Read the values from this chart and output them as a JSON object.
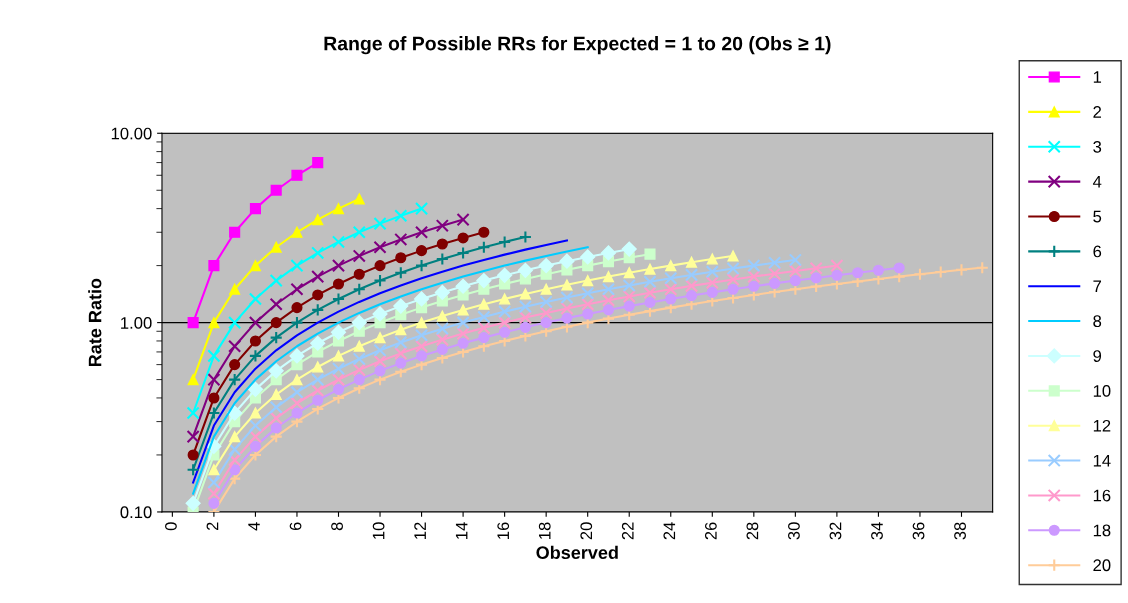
{
  "chart_data": {
    "type": "line",
    "title": "Range of Possible RRs for Expected = 1 to 20 (Obs ≥ 1)",
    "xlabel": "Observed",
    "ylabel": "Rate Ratio",
    "xlim": [
      -0.5,
      39.5
    ],
    "xticks": [
      0,
      2,
      4,
      6,
      8,
      10,
      12,
      14,
      16,
      18,
      20,
      22,
      24,
      26,
      28,
      30,
      32,
      34,
      36,
      38
    ],
    "log": "y",
    "ylim": [
      0.1,
      10
    ],
    "yticks": [
      {
        "value": 0.1,
        "label": "0.10"
      },
      {
        "value": 1,
        "label": "1.00"
      },
      {
        "value": 10,
        "label": "10.00"
      }
    ],
    "grid": "y",
    "legend": "right",
    "series": [
      {
        "name": "1",
        "color": "#ff00ff",
        "marker": "square",
        "x": [
          1,
          2,
          3,
          4,
          5,
          6,
          7
        ],
        "values": [
          1,
          2,
          3,
          4,
          5,
          6,
          7
        ]
      },
      {
        "name": "2",
        "color": "#ffff00",
        "marker": "triangle",
        "x": [
          1,
          2,
          3,
          4,
          5,
          6,
          7,
          8,
          9
        ],
        "values": [
          0.5,
          1,
          1.5,
          2,
          2.5,
          3,
          3.5,
          4,
          4.5
        ]
      },
      {
        "name": "3",
        "color": "#00ffff",
        "marker": "cross",
        "x": [
          1,
          2,
          3,
          4,
          5,
          6,
          7,
          8,
          9,
          10,
          11,
          12
        ],
        "values": [
          0.333,
          0.667,
          1,
          1.333,
          1.667,
          2,
          2.333,
          2.667,
          3,
          3.333,
          3.667,
          4
        ]
      },
      {
        "name": "4",
        "color": "#800080",
        "marker": "cross",
        "x": [
          1,
          2,
          3,
          4,
          5,
          6,
          7,
          8,
          9,
          10,
          11,
          12,
          13,
          14
        ],
        "values": [
          0.25,
          0.5,
          0.75,
          1,
          1.25,
          1.5,
          1.75,
          2,
          2.25,
          2.5,
          2.75,
          3,
          3.25,
          3.5
        ]
      },
      {
        "name": "5",
        "color": "#800000",
        "marker": "circle",
        "x": [
          1,
          2,
          3,
          4,
          5,
          6,
          7,
          8,
          9,
          10,
          11,
          12,
          13,
          14,
          15
        ],
        "values": [
          0.2,
          0.4,
          0.6,
          0.8,
          1,
          1.2,
          1.4,
          1.6,
          1.8,
          2,
          2.2,
          2.4,
          2.6,
          2.8,
          3
        ]
      },
      {
        "name": "6",
        "color": "#008080",
        "marker": "plus",
        "x": [
          1,
          2,
          3,
          4,
          5,
          6,
          7,
          8,
          9,
          10,
          11,
          12,
          13,
          14,
          15,
          16,
          17
        ],
        "values": [
          0.167,
          0.333,
          0.5,
          0.667,
          0.833,
          1,
          1.167,
          1.333,
          1.5,
          1.667,
          1.833,
          2,
          2.167,
          2.333,
          2.5,
          2.667,
          2.833
        ]
      },
      {
        "name": "7",
        "color": "#0000ff",
        "marker": "none",
        "x": [
          1,
          2,
          3,
          4,
          5,
          6,
          7,
          8,
          9,
          10,
          11,
          12,
          13,
          14,
          15,
          16,
          17,
          18,
          19
        ],
        "values": [
          0.143,
          0.286,
          0.429,
          0.571,
          0.714,
          0.857,
          1,
          1.143,
          1.286,
          1.429,
          1.571,
          1.714,
          1.857,
          2,
          2.143,
          2.286,
          2.429,
          2.571,
          2.714
        ]
      },
      {
        "name": "8",
        "color": "#00ccff",
        "marker": "none",
        "x": [
          1,
          2,
          3,
          4,
          5,
          6,
          7,
          8,
          9,
          10,
          11,
          12,
          13,
          14,
          15,
          16,
          17,
          18,
          19,
          20
        ],
        "values": [
          0.125,
          0.25,
          0.375,
          0.5,
          0.625,
          0.75,
          0.875,
          1,
          1.125,
          1.25,
          1.375,
          1.5,
          1.625,
          1.75,
          1.875,
          2,
          2.125,
          2.25,
          2.375,
          2.5
        ]
      },
      {
        "name": "9",
        "color": "#ccffff",
        "marker": "diamond",
        "x": [
          1,
          2,
          3,
          4,
          5,
          6,
          7,
          8,
          9,
          10,
          11,
          12,
          13,
          14,
          15,
          16,
          17,
          18,
          19,
          20,
          21,
          22
        ],
        "values": [
          0.111,
          0.222,
          0.333,
          0.444,
          0.556,
          0.667,
          0.778,
          0.889,
          1,
          1.111,
          1.222,
          1.333,
          1.444,
          1.556,
          1.667,
          1.778,
          1.889,
          2,
          2.111,
          2.222,
          2.333,
          2.444
        ]
      },
      {
        "name": "10",
        "color": "#ccffcc",
        "marker": "square",
        "x": [
          1,
          2,
          3,
          4,
          5,
          6,
          7,
          8,
          9,
          10,
          11,
          12,
          13,
          14,
          15,
          16,
          17,
          18,
          19,
          20,
          21,
          22,
          23
        ],
        "values": [
          0.1,
          0.2,
          0.3,
          0.4,
          0.5,
          0.6,
          0.7,
          0.8,
          0.9,
          1,
          1.1,
          1.2,
          1.3,
          1.4,
          1.5,
          1.6,
          1.7,
          1.8,
          1.9,
          2,
          2.1,
          2.2,
          2.3
        ]
      },
      {
        "name": "12",
        "color": "#ffff99",
        "marker": "triangle",
        "x": [
          2,
          3,
          4,
          5,
          6,
          7,
          8,
          9,
          10,
          11,
          12,
          13,
          14,
          15,
          16,
          17,
          18,
          19,
          20,
          21,
          22,
          23,
          24,
          25,
          26,
          27
        ],
        "values": [
          0.167,
          0.25,
          0.333,
          0.417,
          0.5,
          0.583,
          0.667,
          0.75,
          0.833,
          0.917,
          1,
          1.083,
          1.167,
          1.25,
          1.333,
          1.417,
          1.5,
          1.583,
          1.667,
          1.75,
          1.833,
          1.917,
          2,
          2.083,
          2.167,
          2.25
        ]
      },
      {
        "name": "14",
        "color": "#99ccff",
        "marker": "cross",
        "x": [
          2,
          3,
          4,
          5,
          6,
          7,
          8,
          9,
          10,
          11,
          12,
          13,
          14,
          15,
          16,
          17,
          18,
          19,
          20,
          21,
          22,
          23,
          24,
          25,
          26,
          27,
          28,
          29,
          30
        ],
        "values": [
          0.143,
          0.214,
          0.286,
          0.357,
          0.429,
          0.5,
          0.571,
          0.643,
          0.714,
          0.786,
          0.857,
          0.929,
          1,
          1.071,
          1.143,
          1.214,
          1.286,
          1.357,
          1.429,
          1.5,
          1.571,
          1.643,
          1.714,
          1.786,
          1.857,
          1.929,
          2,
          2.071,
          2.143
        ]
      },
      {
        "name": "16",
        "color": "#ff99cc",
        "marker": "cross",
        "x": [
          2,
          3,
          4,
          5,
          6,
          7,
          8,
          9,
          10,
          11,
          12,
          13,
          14,
          15,
          16,
          17,
          18,
          19,
          20,
          21,
          22,
          23,
          24,
          25,
          26,
          27,
          28,
          29,
          30,
          31,
          32
        ],
        "values": [
          0.125,
          0.188,
          0.25,
          0.313,
          0.375,
          0.438,
          0.5,
          0.563,
          0.625,
          0.688,
          0.75,
          0.813,
          0.875,
          0.938,
          1,
          1.063,
          1.125,
          1.188,
          1.25,
          1.313,
          1.375,
          1.438,
          1.5,
          1.563,
          1.625,
          1.688,
          1.75,
          1.813,
          1.875,
          1.938,
          2
        ]
      },
      {
        "name": "18",
        "color": "#cc99ff",
        "marker": "circle",
        "x": [
          2,
          3,
          4,
          5,
          6,
          7,
          8,
          9,
          10,
          11,
          12,
          13,
          14,
          15,
          16,
          17,
          18,
          19,
          20,
          21,
          22,
          23,
          24,
          25,
          26,
          27,
          28,
          29,
          30,
          31,
          32,
          33,
          34,
          35
        ],
        "values": [
          0.111,
          0.167,
          0.222,
          0.278,
          0.333,
          0.389,
          0.444,
          0.5,
          0.556,
          0.611,
          0.667,
          0.722,
          0.778,
          0.833,
          0.889,
          0.944,
          1,
          1.056,
          1.111,
          1.167,
          1.222,
          1.278,
          1.333,
          1.389,
          1.444,
          1.5,
          1.556,
          1.611,
          1.667,
          1.722,
          1.778,
          1.833,
          1.889,
          1.944
        ]
      },
      {
        "name": "20",
        "color": "#ffcc99",
        "marker": "plus",
        "x": [
          2,
          3,
          4,
          5,
          6,
          7,
          8,
          9,
          10,
          11,
          12,
          13,
          14,
          15,
          16,
          17,
          18,
          19,
          20,
          21,
          22,
          23,
          24,
          25,
          26,
          27,
          28,
          29,
          30,
          31,
          32,
          33,
          34,
          35,
          36,
          37,
          38,
          39
        ],
        "values": [
          0.1,
          0.15,
          0.2,
          0.25,
          0.3,
          0.35,
          0.4,
          0.45,
          0.5,
          0.55,
          0.6,
          0.65,
          0.7,
          0.75,
          0.8,
          0.85,
          0.9,
          0.95,
          1,
          1.05,
          1.1,
          1.15,
          1.2,
          1.25,
          1.3,
          1.35,
          1.4,
          1.45,
          1.5,
          1.55,
          1.6,
          1.65,
          1.7,
          1.75,
          1.8,
          1.85,
          1.9,
          1.95
        ]
      }
    ]
  }
}
